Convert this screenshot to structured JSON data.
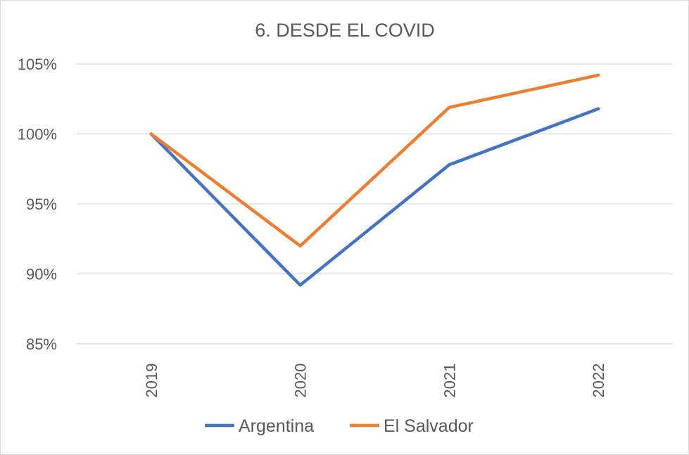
{
  "chart_data": {
    "type": "line",
    "title": "6. DESDE EL COVID",
    "xlabel": "",
    "ylabel": "",
    "categories": [
      "2019",
      "2020",
      "2021",
      "2022"
    ],
    "y_ticks": [
      "85%",
      "90%",
      "95%",
      "100%",
      "105%"
    ],
    "ylim": [
      85,
      105
    ],
    "grid": true,
    "legend_position": "bottom",
    "series": [
      {
        "name": "Argentina",
        "values": [
          100,
          89.2,
          97.8,
          101.8
        ],
        "color": "#4472c4"
      },
      {
        "name": "El Salvador",
        "values": [
          100,
          92.0,
          101.9,
          104.2
        ],
        "color": "#ed7d31"
      }
    ]
  }
}
